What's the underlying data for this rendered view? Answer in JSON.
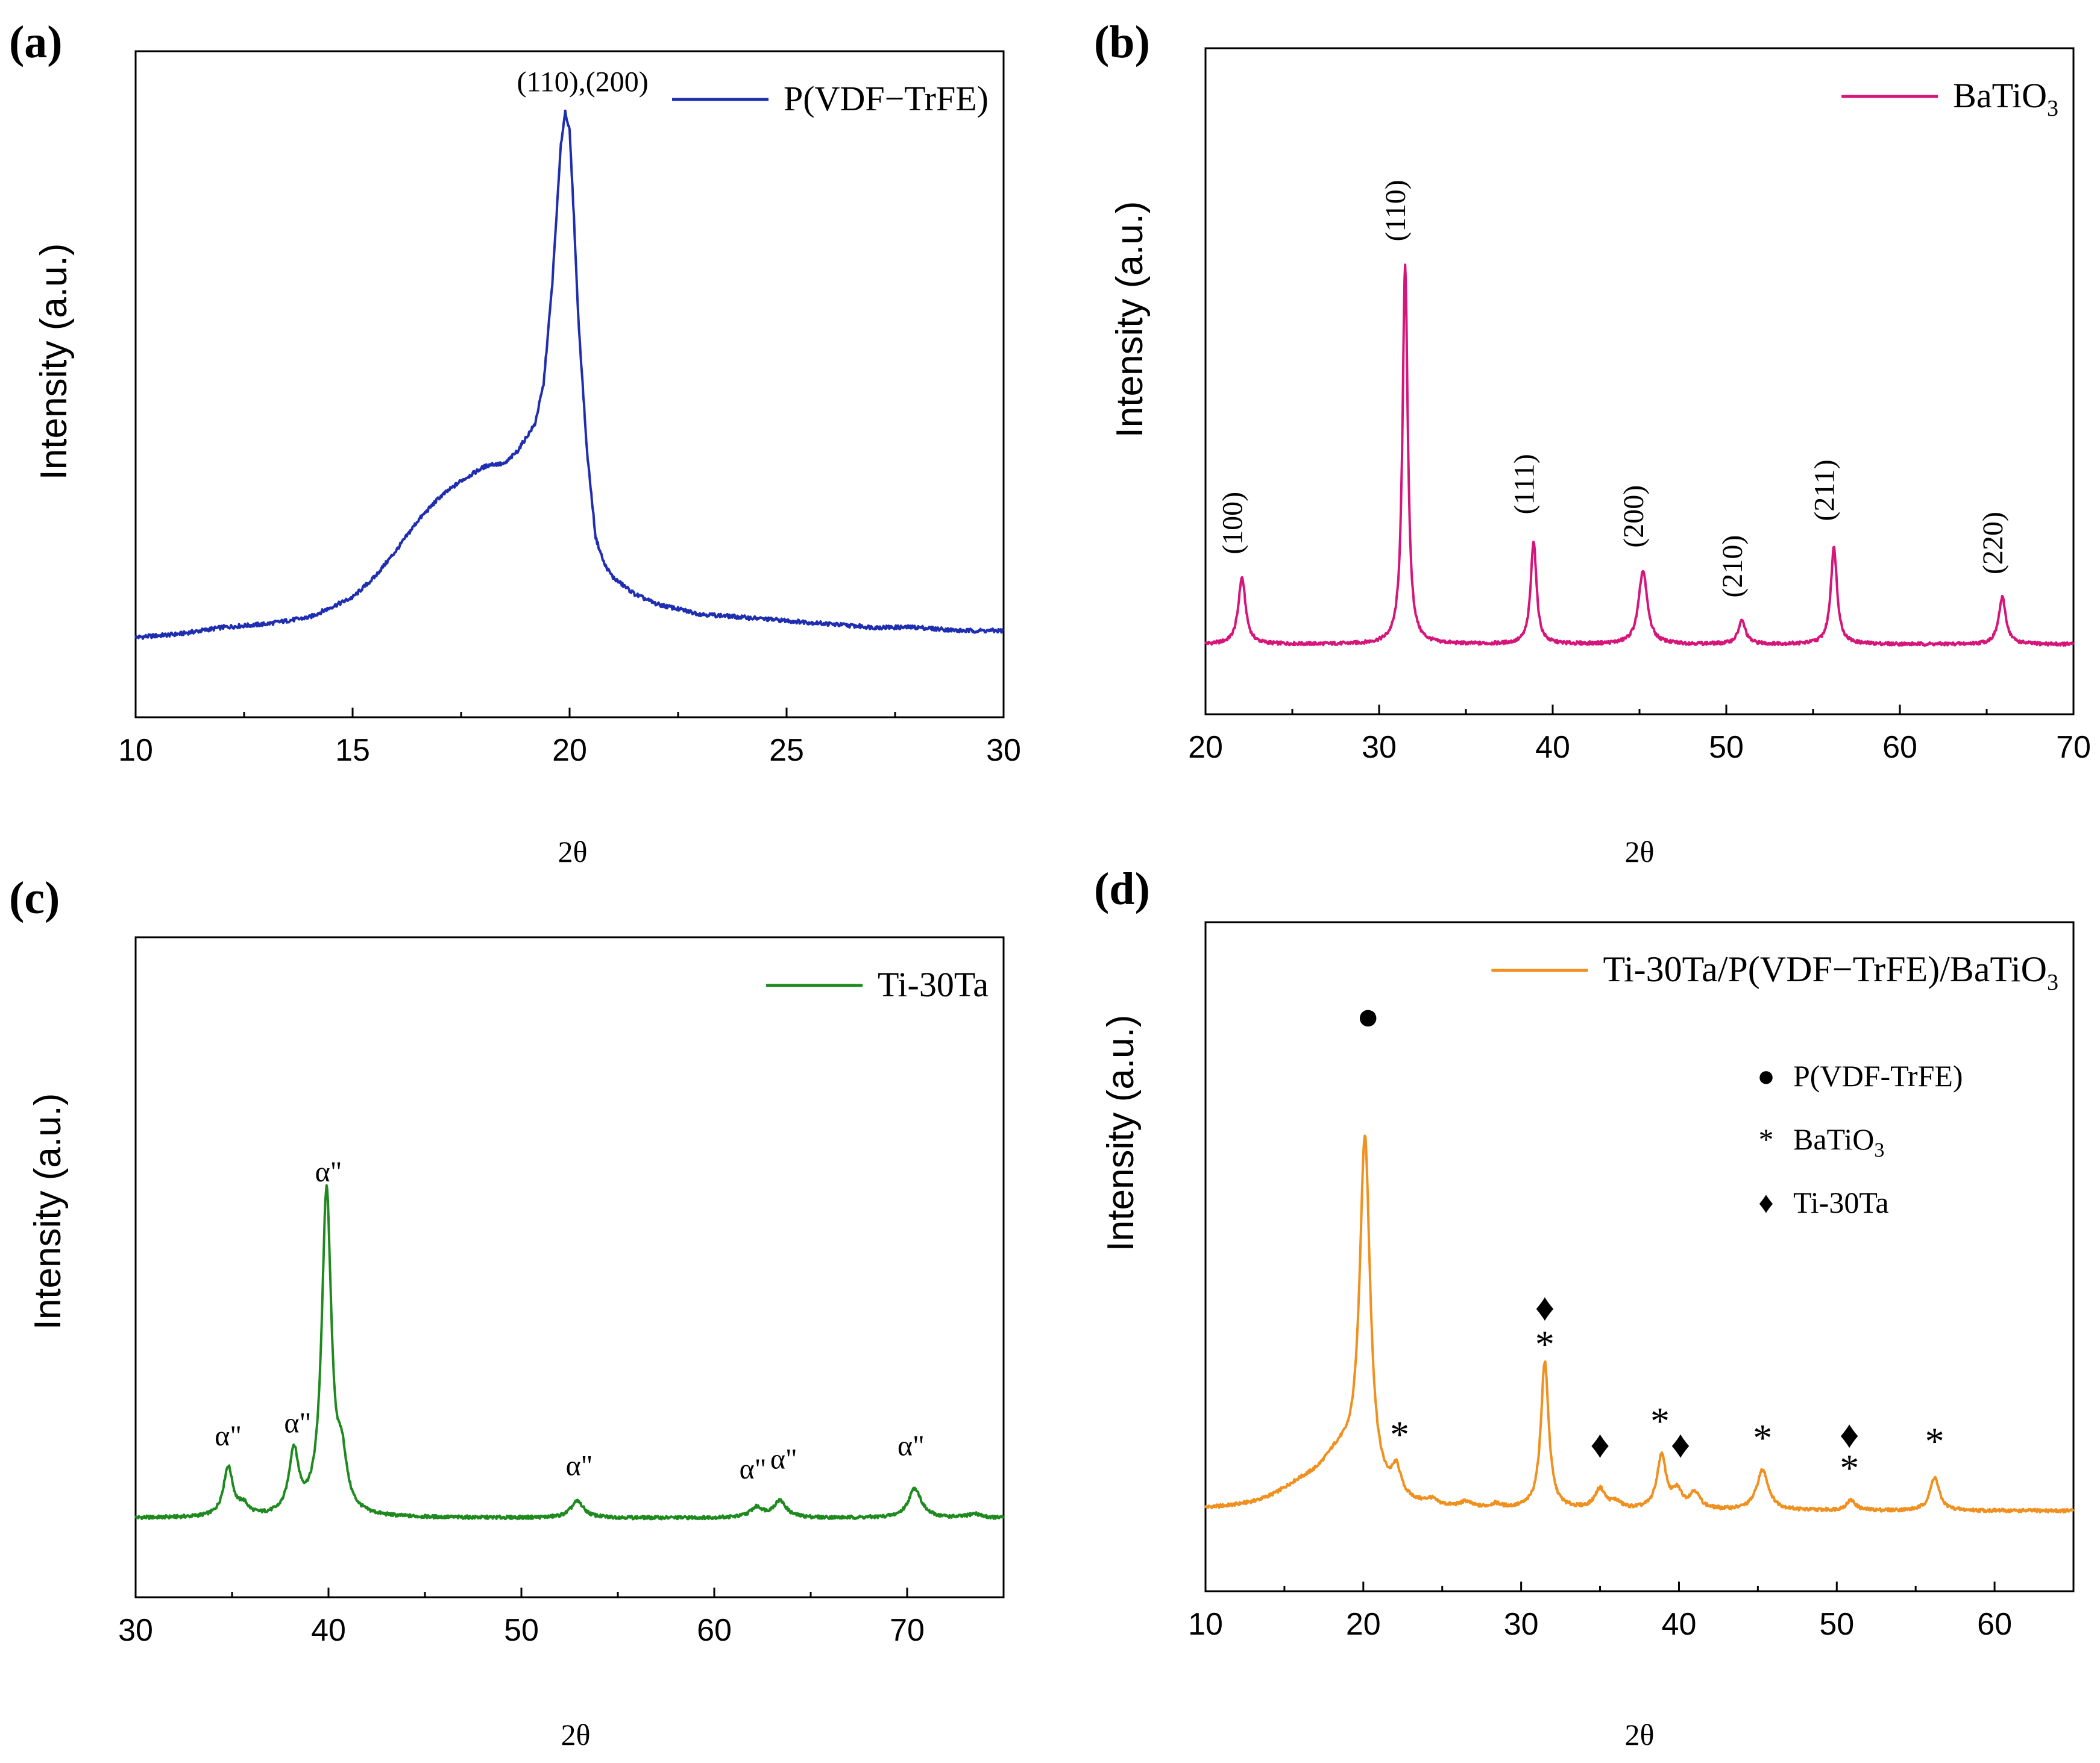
{
  "chart_data": [
    {
      "panel_label": "(a)",
      "type": "line",
      "xlabel": "2θ",
      "ylabel": "Intensity (a.u.)",
      "xlim": [
        10,
        30
      ],
      "ylim": [
        0,
        100
      ],
      "xticks": [
        10,
        15,
        20,
        25,
        30
      ],
      "legend": {
        "position": "top-right",
        "entries": [
          {
            "label": "P(VDF−TrFE)",
            "sub": "",
            "color": "#1f2db0"
          }
        ]
      },
      "series": [
        {
          "name": "P(VDF−TrFE)",
          "color": "#1f2db0",
          "x": [
            10,
            11,
            12,
            13,
            14,
            14.5,
            15,
            15.5,
            16,
            16.5,
            17,
            17.5,
            18,
            18.2,
            18.5,
            18.8,
            19,
            19.2,
            19.4,
            19.6,
            19.8,
            19.9,
            20,
            20.1,
            20.2,
            20.4,
            20.6,
            20.8,
            21,
            21.5,
            22,
            23,
            24,
            25,
            26,
            27,
            28,
            29,
            30
          ],
          "values": [
            12,
            12.5,
            13.5,
            14,
            15,
            16.5,
            18,
            21,
            25,
            29.5,
            33,
            35.5,
            37.5,
            38,
            38,
            40,
            42,
            44,
            50,
            65,
            86,
            91,
            88,
            75,
            60,
            40,
            27,
            23,
            21,
            18.5,
            17,
            15.5,
            15,
            14.5,
            14,
            13.5,
            13.5,
            13,
            13
          ]
        }
      ],
      "annotations": [
        {
          "text": "(110),(200)",
          "x": 20.3,
          "y": 94,
          "rotate": false
        }
      ]
    },
    {
      "panel_label": "(b)",
      "type": "line",
      "xlabel": "2θ",
      "ylabel": "Intensity (a.u.)",
      "xlim": [
        20,
        70
      ],
      "ylim": [
        0,
        100
      ],
      "xticks": [
        20,
        30,
        40,
        50,
        60,
        70
      ],
      "legend": {
        "position": "top-right",
        "entries": [
          {
            "label": "BaTiO",
            "sub": "3",
            "color": "#d6157a"
          }
        ]
      },
      "series": [
        {
          "name": "BaTiO3",
          "color": "#d6157a",
          "peaks": [
            {
              "x": 22.1,
              "height": 10,
              "width": 0.25
            },
            {
              "x": 31.5,
              "height": 57,
              "width": 0.18
            },
            {
              "x": 38.9,
              "height": 15.5,
              "width": 0.2
            },
            {
              "x": 45.2,
              "height": 11,
              "width": 0.3
            },
            {
              "x": 50.9,
              "height": 3.5,
              "width": 0.25
            },
            {
              "x": 56.2,
              "height": 14.5,
              "width": 0.22
            },
            {
              "x": 65.9,
              "height": 7,
              "width": 0.25
            }
          ],
          "baseline": 10.5
        }
      ],
      "annotations": [
        {
          "text": "(100)",
          "x": 22.1,
          "y": 24,
          "rotate": true
        },
        {
          "text": "(110)",
          "x": 31.5,
          "y": 71,
          "rotate": true
        },
        {
          "text": "(111)",
          "x": 38.9,
          "y": 30,
          "rotate": true
        },
        {
          "text": "(200)",
          "x": 45.2,
          "y": 25,
          "rotate": true
        },
        {
          "text": "(210)",
          "x": 50.9,
          "y": 17.5,
          "rotate": true
        },
        {
          "text": "(211)",
          "x": 56.2,
          "y": 29,
          "rotate": true
        },
        {
          "text": "(220)",
          "x": 65.9,
          "y": 21,
          "rotate": true
        }
      ]
    },
    {
      "panel_label": "(c)",
      "type": "line",
      "xlabel": "2θ",
      "ylabel": "Intensity (a.u.)",
      "xlim": [
        30,
        75
      ],
      "ylim": [
        0,
        100
      ],
      "xticks": [
        30,
        40,
        50,
        60,
        70
      ],
      "legend": {
        "position": "top-right",
        "entries": [
          {
            "label": "Ti-30Ta",
            "sub": "",
            "color": "#1e8a1e"
          }
        ]
      },
      "series": [
        {
          "name": "Ti-30Ta",
          "color": "#1e8a1e",
          "peaks": [
            {
              "x": 34.8,
              "height": 7.5,
              "width": 0.3
            },
            {
              "x": 35.6,
              "height": 1.5,
              "width": 0.3
            },
            {
              "x": 38.2,
              "height": 9.5,
              "width": 0.3
            },
            {
              "x": 39.9,
              "height": 49,
              "width": 0.3
            },
            {
              "x": 40.7,
              "height": 7,
              "width": 0.3
            },
            {
              "x": 52.9,
              "height": 2.5,
              "width": 0.4
            },
            {
              "x": 62.2,
              "height": 1.5,
              "width": 0.4
            },
            {
              "x": 63.4,
              "height": 2.5,
              "width": 0.4
            },
            {
              "x": 70.4,
              "height": 4.5,
              "width": 0.4
            },
            {
              "x": 73.5,
              "height": 0.6,
              "width": 0.4
            }
          ],
          "baseline": 12
        }
      ],
      "annotations": [
        {
          "text": "α\"",
          "x": 34.8,
          "y": 23,
          "rotate": false
        },
        {
          "text": "α\"",
          "x": 38.4,
          "y": 25,
          "rotate": false
        },
        {
          "text": "α\"",
          "x": 40.0,
          "y": 63,
          "rotate": false
        },
        {
          "text": "α\"",
          "x": 53.0,
          "y": 18.5,
          "rotate": false
        },
        {
          "text": "α\"",
          "x": 62.0,
          "y": 18,
          "rotate": false
        },
        {
          "text": "α\"",
          "x": 63.6,
          "y": 19.5,
          "rotate": false
        },
        {
          "text": "α\"",
          "x": 70.2,
          "y": 21.5,
          "rotate": false
        }
      ]
    },
    {
      "panel_label": "(d)",
      "type": "line",
      "xlabel": "2θ",
      "ylabel": "Intensity (a.u.)",
      "xlim": [
        10,
        65
      ],
      "ylim": [
        0,
        100
      ],
      "xticks": [
        10,
        20,
        30,
        40,
        50,
        60
      ],
      "legend": {
        "position": "top-right",
        "entries": [
          {
            "label": "Ti-30Ta/P(VDF−TrFE)/BaTiO",
            "sub": "3",
            "color": "#f0901e"
          }
        ]
      },
      "series": [
        {
          "name": "Ti-30Ta/P(VDF−TrFE)/BaTiO3",
          "color": "#f0901e",
          "peaks": [
            {
              "x": 20.1,
              "height": 52,
              "width": 0.4
            },
            {
              "x": 18.5,
              "height": 7,
              "width": 1.6
            },
            {
              "x": 16.0,
              "height": 2.5,
              "width": 2.0
            },
            {
              "x": 22.1,
              "height": 4,
              "width": 0.35
            },
            {
              "x": 24.3,
              "height": 0.8,
              "width": 0.4
            },
            {
              "x": 26.5,
              "height": 0.8,
              "width": 0.4
            },
            {
              "x": 28.4,
              "height": 0.6,
              "width": 0.4
            },
            {
              "x": 31.5,
              "height": 22,
              "width": 0.3
            },
            {
              "x": 35.0,
              "height": 3,
              "width": 0.4
            },
            {
              "x": 36.0,
              "height": 1,
              "width": 0.4
            },
            {
              "x": 38.9,
              "height": 8,
              "width": 0.35
            },
            {
              "x": 39.9,
              "height": 2.5,
              "width": 0.35
            },
            {
              "x": 41.0,
              "height": 2.5,
              "width": 0.4
            },
            {
              "x": 45.3,
              "height": 6,
              "width": 0.45
            },
            {
              "x": 50.9,
              "height": 1.5,
              "width": 0.35
            },
            {
              "x": 56.2,
              "height": 5,
              "width": 0.35
            }
          ],
          "baseline": 12
        }
      ],
      "annotations": [
        {
          "text": "●",
          "x": 20.3,
          "y": 84,
          "rotate": false,
          "big": true
        },
        {
          "text": "♦",
          "x": 31.5,
          "y": 40.5,
          "rotate": false,
          "big": true
        },
        {
          "text": "*",
          "x": 31.5,
          "y": 35,
          "rotate": false,
          "big": true
        },
        {
          "text": "*",
          "x": 22.3,
          "y": 21.5,
          "rotate": false,
          "big": true
        },
        {
          "text": "♦",
          "x": 35.0,
          "y": 20,
          "rotate": false,
          "big": true
        },
        {
          "text": "*",
          "x": 38.8,
          "y": 23.5,
          "rotate": false,
          "big": true
        },
        {
          "text": "♦",
          "x": 40.1,
          "y": 20,
          "rotate": false,
          "big": true
        },
        {
          "text": "*",
          "x": 45.3,
          "y": 21,
          "rotate": false,
          "big": true
        },
        {
          "text": "♦",
          "x": 50.8,
          "y": 21.5,
          "rotate": false,
          "big": true
        },
        {
          "text": "*",
          "x": 50.8,
          "y": 16.5,
          "rotate": false,
          "big": true
        },
        {
          "text": "*",
          "x": 56.2,
          "y": 20.5,
          "rotate": false,
          "big": true
        }
      ],
      "marker_key": [
        {
          "symbol": "●",
          "label": "P(VDF-TrFE)",
          "sub": ""
        },
        {
          "symbol": "*",
          "label": "BaTiO",
          "sub": "3"
        },
        {
          "symbol": "♦",
          "label": "Ti-30Ta",
          "sub": ""
        }
      ]
    }
  ]
}
